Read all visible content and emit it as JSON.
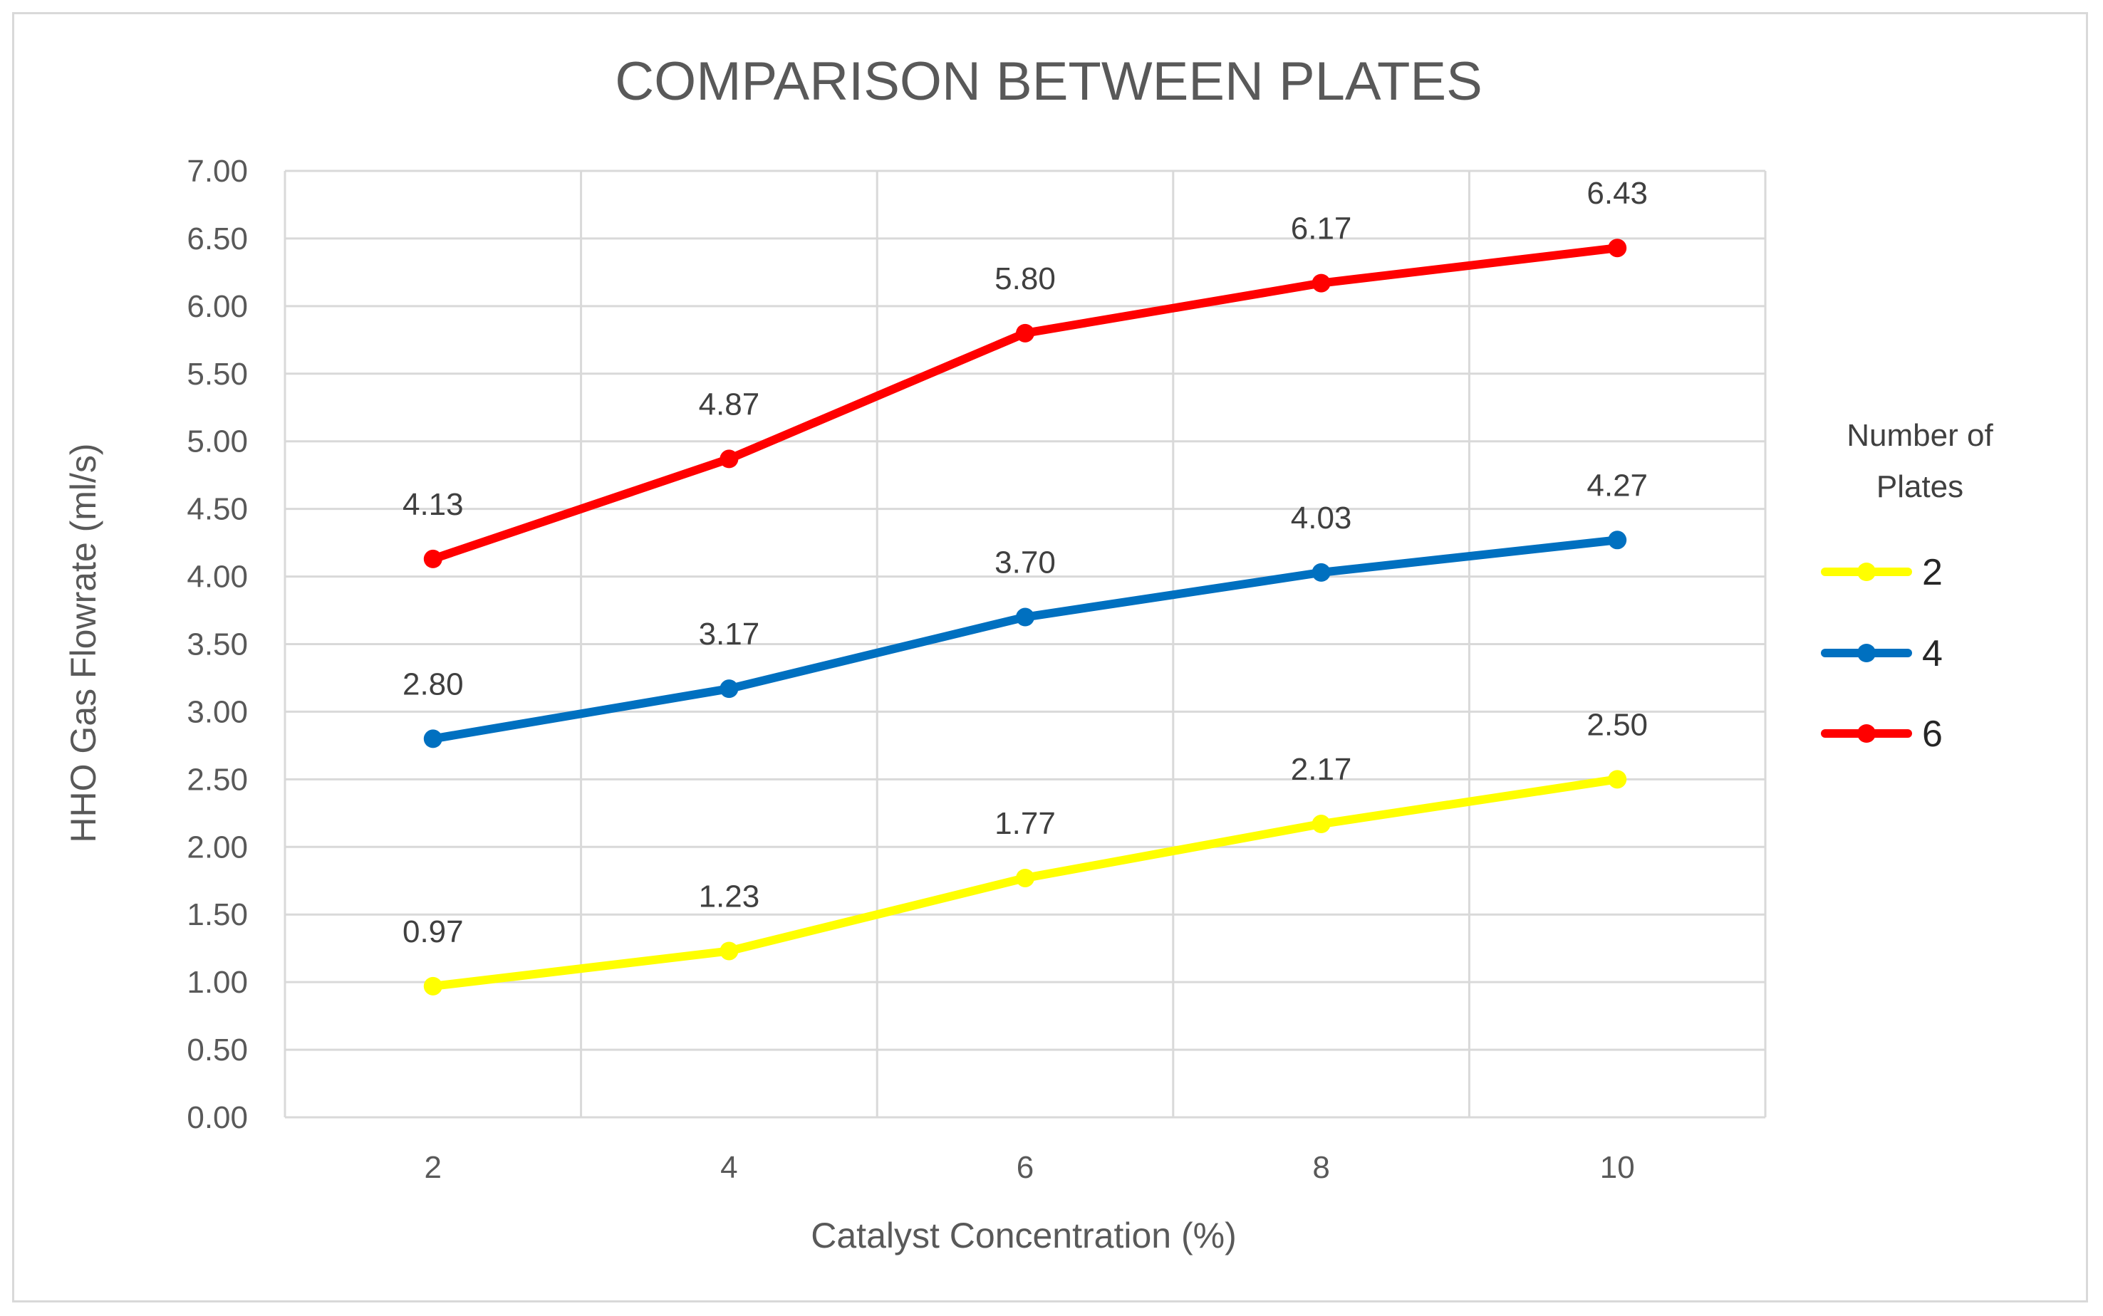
{
  "chart_data": {
    "type": "line",
    "title": "COMPARISON BETWEEN PLATES",
    "xlabel": "Catalyst Concentration (%)",
    "ylabel": "HHO Gas Flowrate (ml/s)",
    "categories": [
      "2",
      "4",
      "6",
      "8",
      "10"
    ],
    "ylim": [
      0,
      7
    ],
    "y_ticks": [
      "0.00",
      "0.50",
      "1.00",
      "1.50",
      "2.00",
      "2.50",
      "3.00",
      "3.50",
      "4.00",
      "4.50",
      "5.00",
      "5.50",
      "6.00",
      "6.50",
      "7.00"
    ],
    "grid": true,
    "legend": {
      "title_line1": "Number of",
      "title_line2": "Plates",
      "position": "right"
    },
    "series": [
      {
        "name": "2",
        "color": "#ffff00",
        "values": [
          0.97,
          1.23,
          1.77,
          2.17,
          2.5
        ],
        "labels": [
          "0.97",
          "1.23",
          "1.77",
          "2.17",
          "2.50"
        ]
      },
      {
        "name": "4",
        "color": "#0070c0",
        "values": [
          2.8,
          3.17,
          3.7,
          4.03,
          4.27
        ],
        "labels": [
          "2.80",
          "3.17",
          "3.70",
          "4.03",
          "4.27"
        ]
      },
      {
        "name": "6",
        "color": "#ff0000",
        "values": [
          4.13,
          4.87,
          5.8,
          6.17,
          6.43
        ],
        "labels": [
          "4.13",
          "4.87",
          "5.80",
          "6.17",
          "6.43"
        ]
      }
    ]
  }
}
